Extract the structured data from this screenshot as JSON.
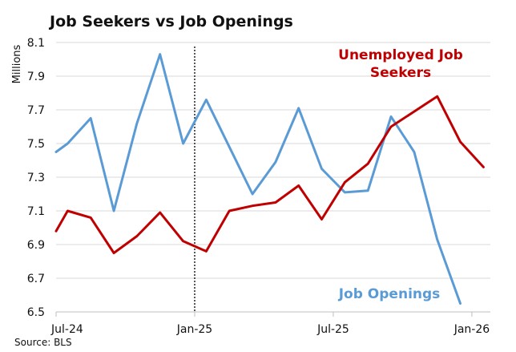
{
  "chart_data": {
    "type": "line",
    "title": "Job Seekers vs Job Openings",
    "source": "Source: BLS",
    "ylabel": "Millions",
    "ylim": [
      6.5,
      8.1
    ],
    "yticks": [
      "6.5",
      "6.7",
      "6.9",
      "7.1",
      "7.3",
      "7.5",
      "7.7",
      "7.9",
      "8.1"
    ],
    "xticks": [
      {
        "label": "Jul-24",
        "month": 0
      },
      {
        "label": "Jan-25",
        "month": 6
      },
      {
        "label": "Jul-25",
        "month": 12
      },
      {
        "label": "Jan-26",
        "month": 18
      }
    ],
    "xlim": [
      0,
      18.8
    ],
    "vertical_marker_month": 6,
    "series": [
      {
        "name": "Job Openings",
        "color": "#5b9bd5",
        "label_lines": [
          "Job Openings"
        ],
        "points": [
          [
            0,
            7.45
          ],
          [
            0.5,
            7.5
          ],
          [
            1.5,
            7.65
          ],
          [
            2.5,
            7.1
          ],
          [
            3.5,
            7.62
          ],
          [
            4.5,
            8.03
          ],
          [
            5.5,
            7.5
          ],
          [
            6.5,
            7.76
          ],
          [
            7.5,
            7.48
          ],
          [
            8.5,
            7.2
          ],
          [
            9.5,
            7.39
          ],
          [
            10.5,
            7.71
          ],
          [
            11.5,
            7.35
          ],
          [
            12.5,
            7.21
          ],
          [
            13.5,
            7.22
          ],
          [
            14.5,
            7.66
          ],
          [
            15.5,
            7.45
          ],
          [
            16.5,
            6.93
          ],
          [
            17.5,
            6.55
          ]
        ]
      },
      {
        "name": "Unemployed Job Seekers",
        "color": "#c00000",
        "label_lines": [
          "Unemployed Job",
          "Seekers"
        ],
        "points": [
          [
            0,
            6.98
          ],
          [
            0.5,
            7.1
          ],
          [
            1.5,
            7.06
          ],
          [
            2.5,
            6.85
          ],
          [
            3.5,
            6.95
          ],
          [
            4.5,
            7.09
          ],
          [
            5.5,
            6.92
          ],
          [
            6.5,
            6.86
          ],
          [
            7.5,
            7.1
          ],
          [
            8.5,
            7.13
          ],
          [
            9.5,
            7.15
          ],
          [
            10.5,
            7.25
          ],
          [
            11.5,
            7.05
          ],
          [
            12.5,
            7.27
          ],
          [
            13.5,
            7.38
          ],
          [
            14.5,
            7.6
          ],
          [
            15.5,
            7.69
          ],
          [
            16.5,
            7.78
          ],
          [
            17.5,
            7.51
          ],
          [
            18.5,
            7.36
          ]
        ]
      }
    ]
  }
}
